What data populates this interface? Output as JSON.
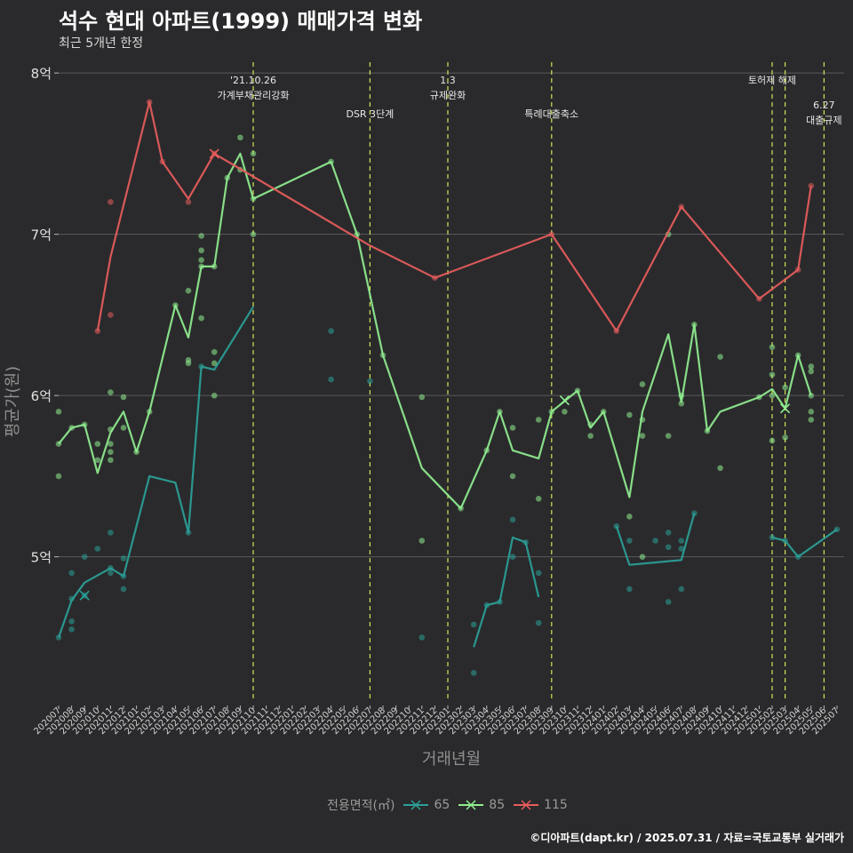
{
  "chart_data": {
    "type": "line",
    "title": "석수 현대 아파트(1999) 매매가격 변화",
    "subtitle": "최근 5개년 한정",
    "xlabel": "거래년월",
    "ylabel": "평균가(원)",
    "x_ticks": [
      "202007",
      "202008",
      "202009",
      "202010",
      "202011",
      "202012",
      "202101",
      "202102",
      "202103",
      "202104",
      "202105",
      "202106",
      "202107",
      "202108",
      "202109",
      "202110",
      "202111",
      "202112",
      "202201",
      "202202",
      "202203",
      "202204",
      "202205",
      "202206",
      "202207",
      "202208",
      "202209",
      "202210",
      "202211",
      "202212",
      "202301",
      "202302",
      "202303",
      "202304",
      "202305",
      "202306",
      "202307",
      "202308",
      "202309",
      "202310",
      "202311",
      "202312",
      "202401",
      "202402",
      "202403",
      "202404",
      "202405",
      "202406",
      "202407",
      "202408",
      "202409",
      "202410",
      "202411",
      "202412",
      "202501",
      "202502",
      "202503",
      "202504",
      "202505",
      "202506",
      "202507"
    ],
    "y_ticks": [
      {
        "value": 5,
        "label": "5억"
      },
      {
        "value": 6,
        "label": "6억"
      },
      {
        "value": 7,
        "label": "7억"
      },
      {
        "value": 8,
        "label": "8억"
      }
    ],
    "ylim": [
      4.1,
      8.1
    ],
    "grid": "horizontal",
    "legend": {
      "title": "전용면적(㎡)",
      "position": "bottom",
      "entries": [
        "65",
        "85",
        "115"
      ]
    },
    "colors": {
      "65": "#2aa198",
      "85": "#90ee90",
      "115": "#e85c5c",
      "event_line": "#d4e157"
    },
    "events": [
      {
        "x": "202110",
        "lines": [
          "'21.10.26",
          "가계부채관리강화"
        ],
        "level": 1
      },
      {
        "x": "202207",
        "lines": [
          "DSR 3단계"
        ],
        "level": 2
      },
      {
        "x": "202301",
        "lines": [
          "1.3",
          "규제완화"
        ],
        "level": 1
      },
      {
        "x": "202309",
        "lines": [
          "특례대출축소"
        ],
        "level": 2
      },
      {
        "x": "202502",
        "lines": [
          "토허제 해제"
        ],
        "level": 1
      },
      {
        "x": "202503",
        "lines": [],
        "level": 1
      },
      {
        "x": "202506",
        "lines": [
          "6.27",
          "대출규제"
        ],
        "level": 3
      }
    ],
    "series": [
      {
        "name": "65",
        "segments": [
          [
            [
              "202007",
              4.5
            ],
            [
              "202008",
              4.73
            ],
            [
              "202009",
              4.84
            ],
            [
              "202011",
              4.93
            ],
            [
              "202012",
              4.88
            ],
            [
              "202102",
              5.5
            ],
            [
              "202104",
              5.46
            ],
            [
              "202105",
              5.15
            ],
            [
              "202106",
              6.18
            ],
            [
              "202107",
              6.16
            ],
            [
              "202110",
              6.55
            ]
          ],
          [
            [
              "202303",
              4.44
            ],
            [
              "202304",
              4.7
            ],
            [
              "202305",
              4.72
            ],
            [
              "202306",
              5.12
            ],
            [
              "202307",
              5.09
            ],
            [
              "202308",
              4.75
            ]
          ],
          [
            [
              "202402",
              5.19
            ],
            [
              "202403",
              4.95
            ],
            [
              "202407",
              4.98
            ],
            [
              "202408",
              5.27
            ]
          ],
          [
            [
              "202502",
              5.12
            ],
            [
              "202503",
              5.1
            ],
            [
              "202504",
              5.0
            ],
            [
              "202507",
              5.17
            ]
          ]
        ],
        "points": [
          [
            "202007",
            4.5
          ],
          [
            "202008",
            4.55
          ],
          [
            "202008",
            4.6
          ],
          [
            "202008",
            4.74
          ],
          [
            "202008",
            4.9
          ],
          [
            "202009",
            4.76
          ],
          [
            "202009",
            5.0
          ],
          [
            "202010",
            5.05
          ],
          [
            "202011",
            4.9
          ],
          [
            "202011",
            4.93
          ],
          [
            "202011",
            5.15
          ],
          [
            "202012",
            4.8
          ],
          [
            "202012",
            4.88
          ],
          [
            "202012",
            4.99
          ],
          [
            "202105",
            5.15
          ],
          [
            "202106",
            6.18
          ],
          [
            "202204",
            6.1
          ],
          [
            "202204",
            6.4
          ],
          [
            "202207",
            6.09
          ],
          [
            "202211",
            4.5
          ],
          [
            "202303",
            4.28
          ],
          [
            "202303",
            4.58
          ],
          [
            "202304",
            4.7
          ],
          [
            "202305",
            4.72
          ],
          [
            "202306",
            5.0
          ],
          [
            "202306",
            5.23
          ],
          [
            "202307",
            5.09
          ],
          [
            "202308",
            4.59
          ],
          [
            "202308",
            4.9
          ],
          [
            "202402",
            5.19
          ],
          [
            "202403",
            4.8
          ],
          [
            "202403",
            5.1
          ],
          [
            "202405",
            5.1
          ],
          [
            "202406",
            4.72
          ],
          [
            "202406",
            5.06
          ],
          [
            "202406",
            5.15
          ],
          [
            "202407",
            4.8
          ],
          [
            "202407",
            5.05
          ],
          [
            "202407",
            5.1
          ],
          [
            "202408",
            5.27
          ],
          [
            "202502",
            5.12
          ],
          [
            "202503",
            5.1
          ],
          [
            "202504",
            5.0
          ],
          [
            "202507",
            5.17
          ]
        ],
        "markers": [
          [
            "202009",
            4.76
          ]
        ]
      },
      {
        "name": "85",
        "segments": [
          [
            [
              "202007",
              5.7
            ],
            [
              "202008",
              5.8
            ],
            [
              "202009",
              5.82
            ],
            [
              "202010",
              5.52
            ],
            [
              "202011",
              5.77
            ],
            [
              "202012",
              5.9
            ],
            [
              "202101",
              5.65
            ],
            [
              "202102",
              5.9
            ],
            [
              "202104",
              6.56
            ],
            [
              "202105",
              6.36
            ],
            [
              "202106",
              6.8
            ],
            [
              "202107",
              6.8
            ],
            [
              "202108",
              7.35
            ],
            [
              "202109",
              7.5
            ],
            [
              "202110",
              7.22
            ],
            [
              "202204",
              7.45
            ],
            [
              "202206",
              7.0
            ],
            [
              "202208",
              6.25
            ],
            [
              "202211",
              5.55
            ],
            [
              "202302",
              5.3
            ],
            [
              "202304",
              5.66
            ],
            [
              "202305",
              5.9
            ],
            [
              "202306",
              5.66
            ],
            [
              "202308",
              5.61
            ],
            [
              "202309",
              5.9
            ],
            [
              "202311",
              6.03
            ],
            [
              "202312",
              5.8
            ],
            [
              "202401",
              5.9
            ],
            [
              "202403",
              5.37
            ],
            [
              "202404",
              5.9
            ],
            [
              "202406",
              6.38
            ],
            [
              "202407",
              5.96
            ],
            [
              "202408",
              6.44
            ],
            [
              "202409",
              5.78
            ],
            [
              "202410",
              5.9
            ],
            [
              "202501",
              5.99
            ],
            [
              "202502",
              6.04
            ],
            [
              "202503",
              5.92
            ],
            [
              "202504",
              6.25
            ],
            [
              "202505",
              6.0
            ]
          ]
        ],
        "points": [
          [
            "202007",
            5.5
          ],
          [
            "202007",
            5.7
          ],
          [
            "202007",
            5.9
          ],
          [
            "202008",
            5.8
          ],
          [
            "202009",
            5.82
          ],
          [
            "202010",
            5.6
          ],
          [
            "202010",
            5.7
          ],
          [
            "202011",
            5.6
          ],
          [
            "202011",
            5.65
          ],
          [
            "202011",
            5.7
          ],
          [
            "202011",
            5.79
          ],
          [
            "202011",
            6.02
          ],
          [
            "202012",
            5.8
          ],
          [
            "202012",
            5.99
          ],
          [
            "202101",
            5.65
          ],
          [
            "202102",
            5.9
          ],
          [
            "202104",
            6.56
          ],
          [
            "202105",
            6.2
          ],
          [
            "202105",
            6.22
          ],
          [
            "202105",
            6.65
          ],
          [
            "202106",
            6.48
          ],
          [
            "202106",
            6.8
          ],
          [
            "202106",
            6.84
          ],
          [
            "202106",
            6.9
          ],
          [
            "202106",
            6.99
          ],
          [
            "202107",
            6.2
          ],
          [
            "202107",
            6.27
          ],
          [
            "202107",
            6.8
          ],
          [
            "202107",
            6.0
          ],
          [
            "202108",
            7.35
          ],
          [
            "202109",
            7.4
          ],
          [
            "202109",
            7.6
          ],
          [
            "202110",
            7.0
          ],
          [
            "202110",
            7.22
          ],
          [
            "202110",
            7.5
          ],
          [
            "202204",
            7.45
          ],
          [
            "202206",
            7.0
          ],
          [
            "202208",
            6.25
          ],
          [
            "202211",
            5.1
          ],
          [
            "202211",
            5.99
          ],
          [
            "202302",
            5.3
          ],
          [
            "202304",
            5.66
          ],
          [
            "202305",
            5.9
          ],
          [
            "202306",
            5.5
          ],
          [
            "202306",
            5.8
          ],
          [
            "202308",
            5.36
          ],
          [
            "202308",
            5.85
          ],
          [
            "202309",
            5.9
          ],
          [
            "202310",
            5.9
          ],
          [
            "202311",
            6.03
          ],
          [
            "202312",
            5.75
          ],
          [
            "202312",
            5.82
          ],
          [
            "202401",
            5.9
          ],
          [
            "202403",
            5.25
          ],
          [
            "202403",
            5.88
          ],
          [
            "202404",
            5.0
          ],
          [
            "202404",
            5.75
          ],
          [
            "202404",
            5.85
          ],
          [
            "202404",
            6.07
          ],
          [
            "202406",
            7.0
          ],
          [
            "202406",
            5.75
          ],
          [
            "202407",
            5.95
          ],
          [
            "202407",
            6.0
          ],
          [
            "202408",
            6.44
          ],
          [
            "202409",
            5.78
          ],
          [
            "202410",
            6.24
          ],
          [
            "202410",
            5.55
          ],
          [
            "202501",
            5.99
          ],
          [
            "202502",
            5.72
          ],
          [
            "202502",
            6.0
          ],
          [
            "202502",
            6.13
          ],
          [
            "202502",
            6.3
          ],
          [
            "202503",
            5.74
          ],
          [
            "202503",
            6.05
          ],
          [
            "202504",
            6.25
          ],
          [
            "202505",
            5.85
          ],
          [
            "202505",
            5.9
          ],
          [
            "202505",
            6.0
          ],
          [
            "202505",
            6.15
          ],
          [
            "202505",
            6.18
          ]
        ],
        "markers": [
          [
            "202310",
            5.97
          ],
          [
            "202503",
            5.92
          ]
        ]
      },
      {
        "name": "115",
        "segments": [
          [
            [
              "202010",
              6.4
            ],
            [
              "202011",
              6.86
            ],
            [
              "202102",
              7.82
            ],
            [
              "202103",
              7.45
            ],
            [
              "202105",
              7.22
            ],
            [
              "202107",
              7.5
            ],
            [
              "202207",
              6.93
            ],
            [
              "202212",
              6.73
            ],
            [
              "202309",
              7.0
            ],
            [
              "202402",
              6.4
            ],
            [
              "202407",
              7.17
            ],
            [
              "202501",
              6.6
            ],
            [
              "202504",
              6.78
            ],
            [
              "202505",
              7.3
            ]
          ]
        ],
        "points": [
          [
            "202010",
            6.4
          ],
          [
            "202011",
            6.5
          ],
          [
            "202011",
            7.2
          ],
          [
            "202102",
            7.82
          ],
          [
            "202103",
            7.45
          ],
          [
            "202105",
            7.2
          ],
          [
            "202107",
            7.5
          ],
          [
            "202212",
            6.73
          ],
          [
            "202309",
            7.0
          ],
          [
            "202402",
            6.4
          ],
          [
            "202407",
            7.17
          ],
          [
            "202501",
            6.6
          ],
          [
            "202504",
            6.78
          ],
          [
            "202505",
            7.3
          ]
        ],
        "markers": [
          [
            "202107",
            7.5
          ]
        ]
      }
    ],
    "caption": "©디아파트(dapt.kr) / 2025.07.31 / 자료=국토교통부 실거래가"
  }
}
